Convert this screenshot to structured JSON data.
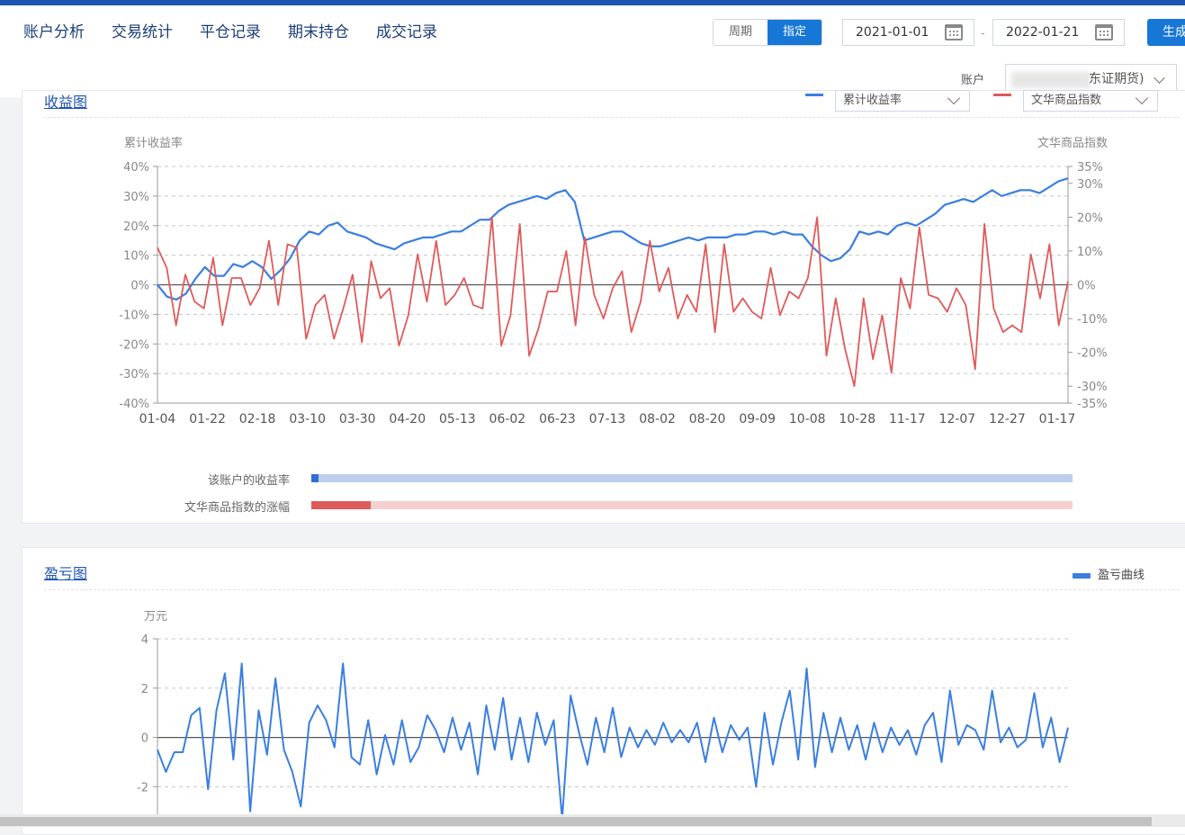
{
  "nav": {
    "items": [
      "账户分析",
      "交易统计",
      "平仓记录",
      "期末持仓",
      "成交记录"
    ]
  },
  "controls": {
    "period_label": "周期",
    "custom_label": "指定",
    "date_start": "2021-01-01",
    "date_sep": "-",
    "date_end": "2022-01-21",
    "generate_label": "生成",
    "account_label": "账户",
    "account_value": "东证期货)"
  },
  "colors": {
    "brand": "#1e56b3",
    "primary_button": "#1677d6",
    "account_line": "#3a7fe0",
    "index_line": "#e05a5a"
  },
  "returns_panel": {
    "title": "收益图",
    "select1_label": "累计收益率",
    "select2_label": "文华商品指数",
    "bar_label_account": "该账户的收益率",
    "bar_label_index": "文华商品指数的涨幅",
    "bar_fill_account": 0.01,
    "bar_fill_index": 0.078
  },
  "pnl_panel": {
    "title": "盈亏图",
    "legend_label": "盈亏曲线"
  },
  "chart_data": [
    {
      "type": "line",
      "title": "",
      "ylabel": "累计收益率",
      "ylabel_right": "文华商品指数",
      "x_ticks": [
        "01-04",
        "01-22",
        "02-18",
        "03-10",
        "03-30",
        "04-20",
        "05-13",
        "06-02",
        "06-23",
        "07-13",
        "08-02",
        "08-20",
        "09-09",
        "10-08",
        "10-28",
        "11-17",
        "12-07",
        "12-27",
        "01-17"
      ],
      "y_ticks": [
        "40%",
        "30%",
        "20%",
        "10%",
        "0%",
        "-10%",
        "-20%",
        "-30%",
        "-40%"
      ],
      "y2_ticks": [
        "35%",
        "30%",
        "20%",
        "10%",
        "0%",
        "-10%",
        "-20%",
        "-30%",
        "-35%"
      ],
      "ylim": [
        -40,
        40
      ],
      "y2lim": [
        -35,
        35
      ],
      "grid": true,
      "series": [
        {
          "name": "累计收益率",
          "axis": "left",
          "values": [
            0,
            -4,
            -5,
            -3,
            2,
            6,
            3,
            3,
            7,
            6,
            8,
            6,
            2,
            5,
            9,
            15,
            18,
            17,
            20,
            21,
            18,
            17,
            16,
            14,
            13,
            12,
            14,
            15,
            16,
            16,
            17,
            18,
            18,
            20,
            22,
            22,
            25,
            27,
            28,
            29,
            30,
            29,
            31,
            32,
            28,
            15,
            16,
            17,
            18,
            18,
            16,
            14,
            13,
            13,
            14,
            15,
            16,
            15,
            16,
            16,
            16,
            17,
            17,
            18,
            18,
            17,
            18,
            17,
            17,
            13,
            10,
            8,
            9,
            12,
            18,
            17,
            18,
            17,
            20,
            21,
            20,
            22,
            24,
            27,
            28,
            29,
            28,
            30,
            32,
            30,
            31,
            32,
            32,
            31,
            33,
            35,
            36
          ]
        },
        {
          "name": "文华商品指数",
          "axis": "right",
          "values": [
            11,
            5,
            -12,
            3,
            -5,
            -7,
            8,
            -12,
            2,
            2,
            -6,
            -1,
            13,
            -6,
            12,
            11,
            -16,
            -6,
            -3,
            -16,
            -7,
            3,
            -17,
            7,
            -4,
            -1,
            -18,
            -9,
            9,
            -5,
            13,
            -6,
            -3,
            2,
            -6,
            -7,
            20,
            -18,
            -9,
            18,
            -21,
            -13,
            -2,
            -2,
            10,
            -12,
            14,
            -3,
            -10,
            -1,
            4,
            -14,
            -5,
            13,
            -2,
            5,
            -10,
            -3,
            -8,
            12,
            -14,
            12,
            -8,
            -4,
            -8,
            -10,
            5,
            -9,
            -2,
            -4,
            2,
            20,
            -21,
            -4,
            -19,
            -30,
            -4,
            -22,
            -9,
            -26,
            2,
            -7,
            17,
            -3,
            -4,
            -8,
            -1,
            -6,
            -25,
            18,
            -7,
            -14,
            -12,
            -14,
            9,
            -4,
            12,
            -12,
            1
          ]
        }
      ]
    },
    {
      "type": "line",
      "title": "",
      "ylabel": "万元",
      "y_ticks": [
        "4",
        "2",
        "0",
        "-2"
      ],
      "ylim": [
        -3.3,
        4
      ],
      "grid": true,
      "series": [
        {
          "name": "盈亏曲线",
          "values": [
            -0.5,
            -1.4,
            -0.6,
            -0.6,
            0.9,
            1.2,
            -2.1,
            1.1,
            2.6,
            -0.9,
            3.0,
            -3.0,
            1.1,
            -0.7,
            2.4,
            -0.5,
            -1.4,
            -2.8,
            0.6,
            1.3,
            0.7,
            -0.4,
            3.0,
            -0.8,
            -1.1,
            0.7,
            -1.5,
            0.1,
            -1.1,
            0.7,
            -1.0,
            -0.4,
            0.9,
            0.3,
            -0.6,
            0.8,
            -0.5,
            0.6,
            -1.5,
            1.3,
            -0.5,
            1.6,
            -0.9,
            0.8,
            -1.0,
            1.0,
            -0.3,
            0.7,
            -3.3,
            1.7,
            0.2,
            -1.1,
            0.8,
            -0.6,
            1.2,
            -0.8,
            0.4,
            -0.4,
            0.3,
            -0.3,
            0.6,
            -0.2,
            0.3,
            -0.2,
            0.6,
            -1.0,
            0.8,
            -0.6,
            0.5,
            -0.1,
            0.4,
            -2.0,
            1.0,
            -1.1,
            0.6,
            1.9,
            -0.9,
            2.8,
            -1.2,
            1.0,
            -0.6,
            0.8,
            -0.5,
            0.5,
            -0.9,
            0.6,
            -0.6,
            0.4,
            -0.3,
            0.3,
            -0.7,
            0.5,
            1.0,
            -1.0,
            1.9,
            -0.3,
            0.5,
            0.3,
            -0.5,
            1.9,
            -0.2,
            0.4,
            -0.4,
            -0.1,
            1.8,
            -0.4,
            0.8,
            -1.0,
            0.4
          ]
        }
      ]
    }
  ]
}
